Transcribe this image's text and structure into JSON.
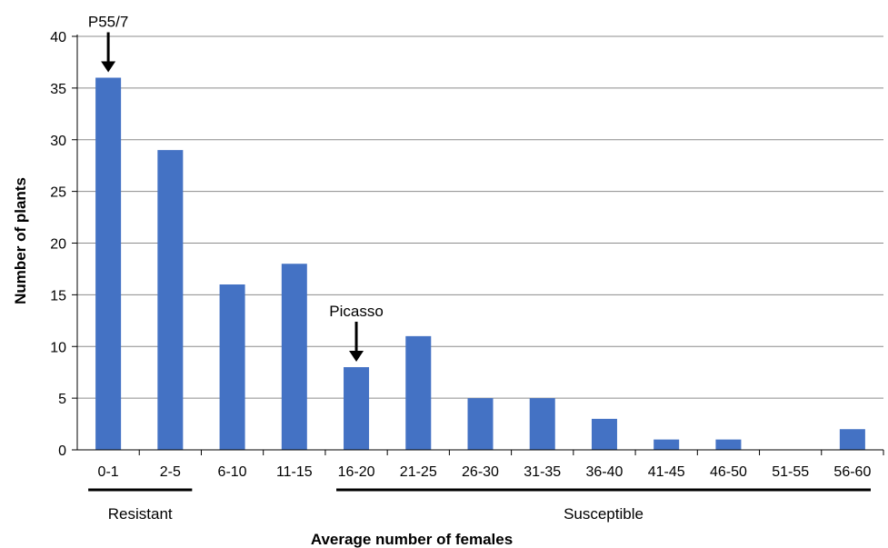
{
  "chart_data": {
    "type": "bar",
    "categories": [
      "0-1",
      "2-5",
      "6-10",
      "11-15",
      "16-20",
      "21-25",
      "26-30",
      "31-35",
      "36-40",
      "41-45",
      "46-50",
      "51-55",
      "56-60"
    ],
    "values": [
      36,
      29,
      16,
      18,
      8,
      11,
      5,
      5,
      3,
      1,
      1,
      0,
      2
    ],
    "xlabel": "Average number of females",
    "ylabel": "Number of plants",
    "ylim": [
      0,
      40
    ],
    "yticks": [
      0,
      5,
      10,
      15,
      20,
      25,
      30,
      35,
      40
    ],
    "grid": "horizontal",
    "bar_color": "#4472C4",
    "annotations": [
      {
        "label": "P55/7",
        "category": "0-1",
        "marker": "down-arrow"
      },
      {
        "label": "Picasso",
        "category": "16-20",
        "marker": "down-arrow"
      }
    ],
    "groups": [
      {
        "label": "Resistant",
        "from": "0-1",
        "to": "2-5"
      },
      {
        "label": "Susceptible",
        "from": "16-20",
        "to": "56-60"
      }
    ]
  }
}
